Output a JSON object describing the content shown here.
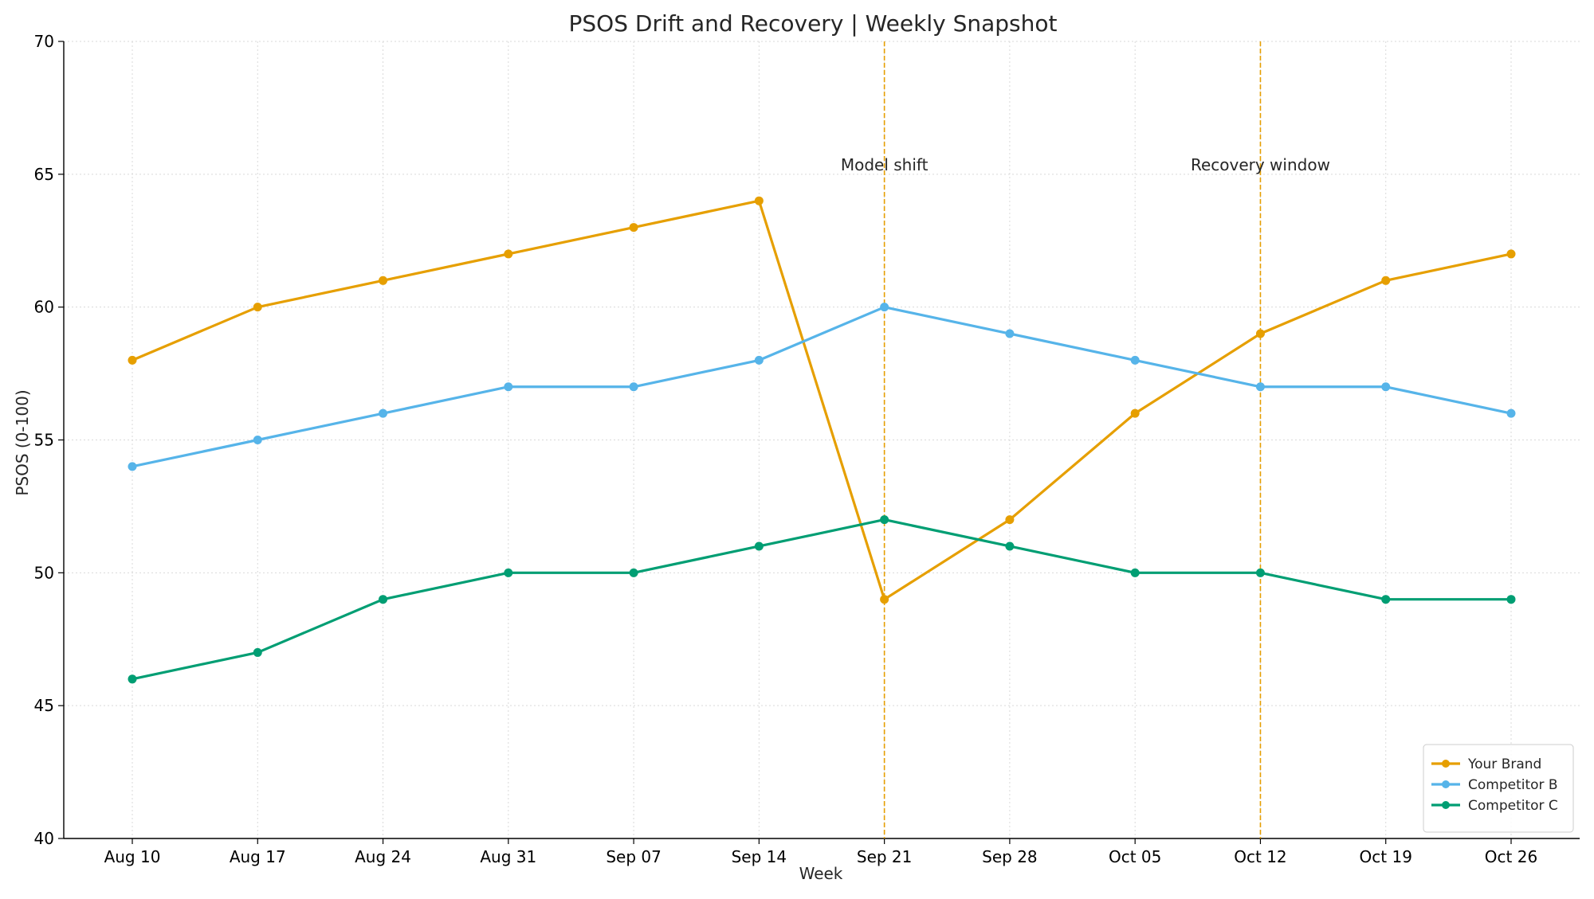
{
  "chart_data": {
    "type": "line",
    "title": "PSOS Drift and Recovery | Weekly Snapshot",
    "xlabel": "Week",
    "ylabel": "PSOS (0-100)",
    "categories": [
      "Aug 10",
      "Aug 17",
      "Aug 24",
      "Aug 31",
      "Sep 07",
      "Sep 14",
      "Sep 21",
      "Sep 28",
      "Oct 05",
      "Oct 12",
      "Oct 19",
      "Oct 26"
    ],
    "ylim": [
      40,
      70
    ],
    "yticks": [
      40,
      45,
      50,
      55,
      60,
      65,
      70
    ],
    "grid": true,
    "legend_position": "bottom-right",
    "series": [
      {
        "name": "Your Brand",
        "color": "#E69F00",
        "values": [
          58,
          60,
          61,
          62,
          63,
          64,
          49,
          52,
          56,
          59,
          61,
          62
        ]
      },
      {
        "name": "Competitor B",
        "color": "#56B4E9",
        "values": [
          54,
          55,
          56,
          57,
          57,
          58,
          60,
          59,
          58,
          57,
          57,
          56
        ]
      },
      {
        "name": "Competitor C",
        "color": "#009E73",
        "values": [
          46,
          47,
          49,
          50,
          50,
          51,
          52,
          51,
          50,
          50,
          49,
          49
        ]
      }
    ],
    "annotations": [
      {
        "x": "Sep 21",
        "label": "Model shift",
        "label_y": 65,
        "color": "#E69F00"
      },
      {
        "x": "Oct 12",
        "label": "Recovery window",
        "label_y": 65,
        "color": "#E69F00"
      }
    ]
  }
}
